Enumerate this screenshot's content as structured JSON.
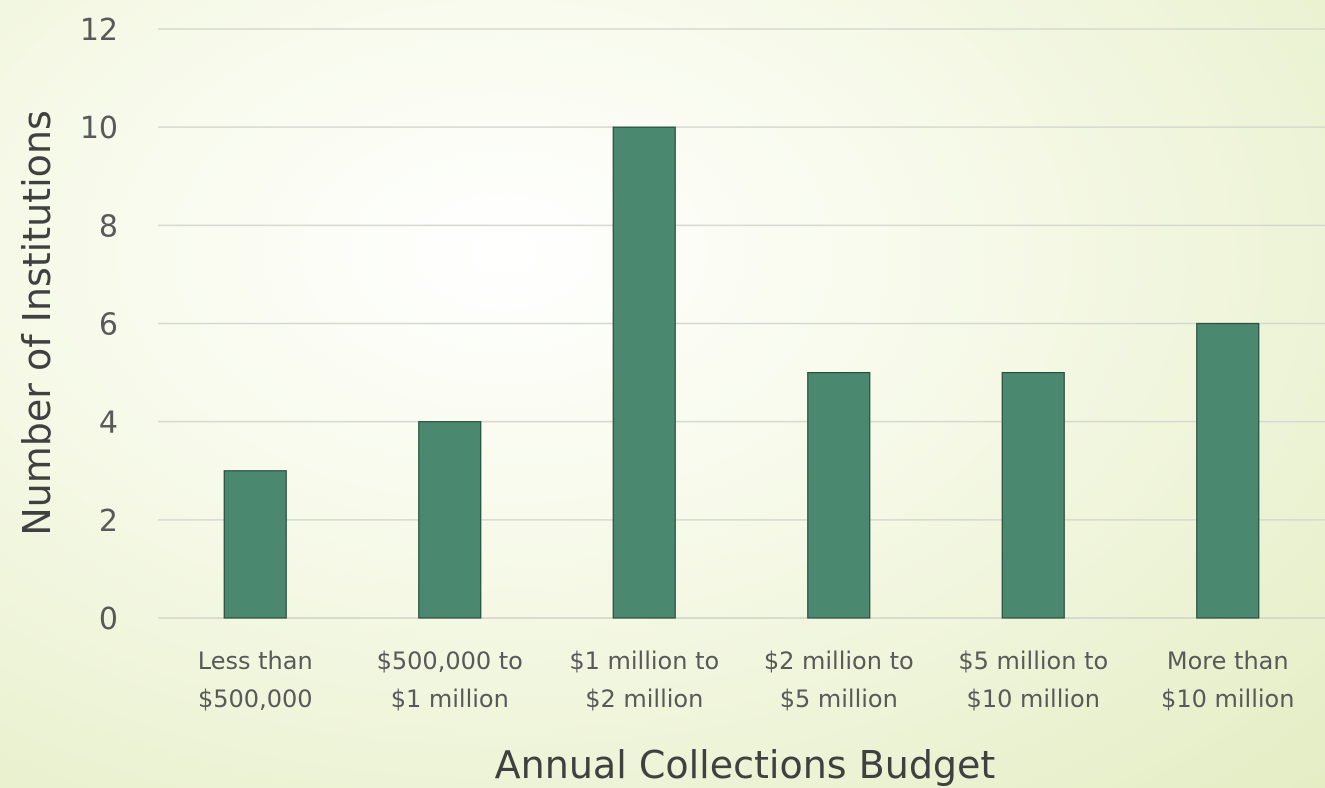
{
  "chart_data": {
    "type": "bar",
    "title": "",
    "xlabel": "Annual Collections Budget",
    "ylabel": "Number of Institutions",
    "categories": [
      [
        "Less than",
        "$500,000"
      ],
      [
        "$500,000 to",
        "$1 million"
      ],
      [
        "$1 million to",
        "$2 million"
      ],
      [
        "$2 million to",
        "$5 million"
      ],
      [
        "$5 million to",
        "$10 million"
      ],
      [
        "More than",
        "$10 million"
      ]
    ],
    "values": [
      3,
      4,
      10,
      5,
      5,
      6
    ],
    "ylim": [
      0,
      12
    ],
    "yticks": [
      "0",
      "2",
      "4",
      "6",
      "8",
      "10",
      "12"
    ],
    "grid": true,
    "legend": "none",
    "colors": {
      "bar_fill": "#4a8870",
      "bar_stroke": "#2a4f3f",
      "grid": "#d6d9cf",
      "text": "#595959"
    }
  }
}
